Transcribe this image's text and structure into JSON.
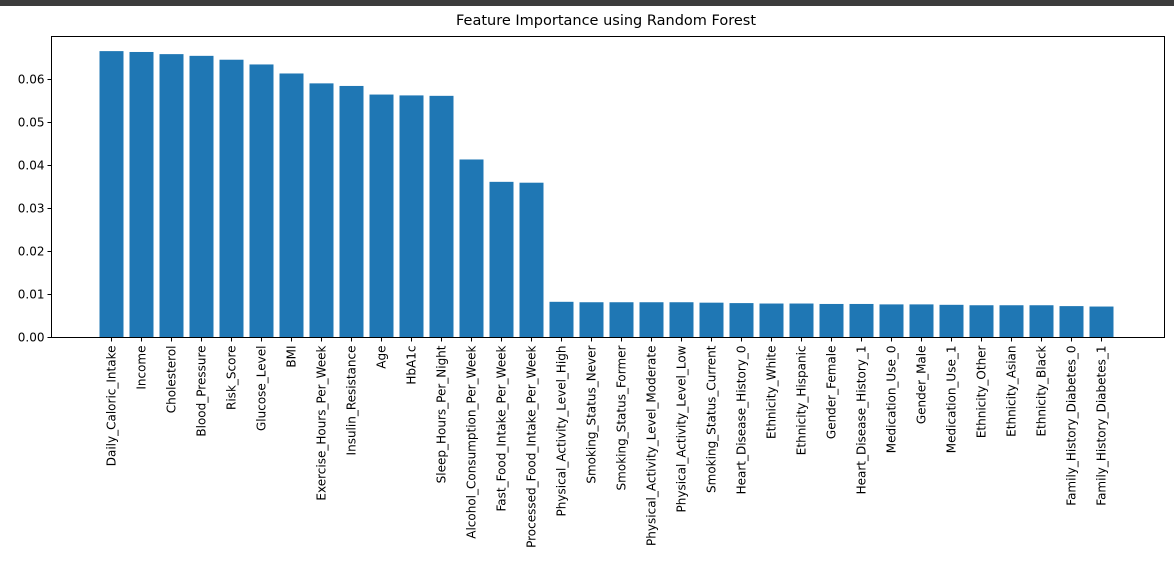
{
  "chart_data": {
    "type": "bar",
    "title": "Feature Importance using Random Forest",
    "xlabel": "",
    "ylabel": "",
    "ylim": [
      0,
      0.07
    ],
    "yticks": [
      "0.00",
      "0.01",
      "0.02",
      "0.03",
      "0.04",
      "0.05",
      "0.06"
    ],
    "bar_color": "#1f77b4",
    "grid": false,
    "categories": [
      "Daily_Caloric_Intake",
      "Income",
      "Cholesterol",
      "Blood_Pressure",
      "Risk_Score",
      "Glucose_Level",
      "BMI",
      "Exercise_Hours_Per_Week",
      "Insulin_Resistance",
      "Age",
      "HbA1c",
      "Sleep_Hours_Per_Night",
      "Alcohol_Consumption_Per_Week",
      "Fast_Food_Intake_Per_Week",
      "Processed_Food_Intake_Per_Week",
      "Physical_Activity_Level_High",
      "Smoking_Status_Never",
      "Smoking_Status_Former",
      "Physical_Activity_Level_Moderate",
      "Physical_Activity_Level_Low",
      "Smoking_Status_Current",
      "Heart_Disease_History_0",
      "Ethnicity_White",
      "Ethnicity_Hispanic",
      "Gender_Female",
      "Heart_Disease_History_1",
      "Medication_Use_0",
      "Gender_Male",
      "Medication_Use_1",
      "Ethnicity_Other",
      "Ethnicity_Asian",
      "Ethnicity_Black",
      "Family_History_Diabetes_0",
      "Family_History_Diabetes_1"
    ],
    "values": [
      0.0666,
      0.0664,
      0.0659,
      0.0655,
      0.0646,
      0.0635,
      0.0614,
      0.0591,
      0.0585,
      0.0565,
      0.0563,
      0.0562,
      0.0414,
      0.0362,
      0.036,
      0.0083,
      0.0082,
      0.0082,
      0.0082,
      0.0082,
      0.0081,
      0.008,
      0.0079,
      0.0079,
      0.0078,
      0.0078,
      0.0077,
      0.0077,
      0.0076,
      0.0075,
      0.0075,
      0.0075,
      0.0073,
      0.0072
    ]
  }
}
